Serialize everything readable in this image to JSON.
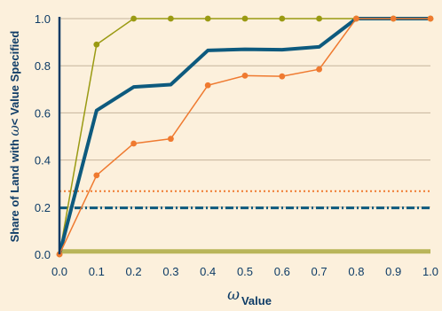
{
  "chart_data": {
    "type": "line",
    "title": "",
    "xlabel": {
      "symbol": "ω",
      "text": "Value"
    },
    "ylabel": {
      "prefix": "Share of Land with ",
      "symbol": "ω",
      "suffix": "< Value Specified"
    },
    "xlim": [
      0,
      1.0
    ],
    "ylim": [
      0,
      1.0
    ],
    "x_ticks": [
      "0.0",
      "0.1",
      "0.2",
      "0.3",
      "0.4",
      "0.5",
      "0.6",
      "0.7",
      "0.8",
      "0.9",
      "1.0"
    ],
    "y_ticks": [
      "0.0",
      "0.2",
      "0.4",
      "0.6",
      "0.8",
      "1.0"
    ],
    "grid": "horizontal",
    "legend": "none",
    "series": [
      {
        "style": "solid",
        "markers": true,
        "color": "#9a9a12",
        "x": [
          0.0,
          0.1,
          0.2,
          0.3,
          0.4,
          0.5,
          0.6,
          0.7,
          0.8,
          0.9,
          1.0
        ],
        "y": [
          0.0,
          0.89,
          1.0,
          1.0,
          1.0,
          1.0,
          1.0,
          1.0,
          1.0,
          1.0,
          1.0
        ]
      },
      {
        "style": "solid-thick",
        "markers": false,
        "color": "#0d5a7e",
        "x": [
          0.0,
          0.1,
          0.2,
          0.3,
          0.4,
          0.5,
          0.6,
          0.7,
          0.8,
          0.9,
          1.0
        ],
        "y": [
          0.0,
          0.61,
          0.71,
          0.72,
          0.865,
          0.87,
          0.868,
          0.88,
          1.0,
          1.0,
          1.0
        ]
      },
      {
        "style": "solid",
        "markers": true,
        "color": "#ef7a30",
        "x": [
          0.0,
          0.1,
          0.2,
          0.3,
          0.4,
          0.5,
          0.6,
          0.7,
          0.8,
          0.9,
          1.0
        ],
        "y": [
          0.0,
          0.335,
          0.47,
          0.49,
          0.717,
          0.758,
          0.755,
          0.785,
          1.0,
          1.0,
          1.0
        ]
      }
    ],
    "reference_lines": [
      {
        "style": "dotted",
        "color": "#ef7a30",
        "y": 0.268
      },
      {
        "style": "dash-dot",
        "color": "#0d5a7e",
        "y": 0.197
      },
      {
        "style": "solid-wide",
        "color": "#b9b55a",
        "y": 0.012
      }
    ]
  }
}
